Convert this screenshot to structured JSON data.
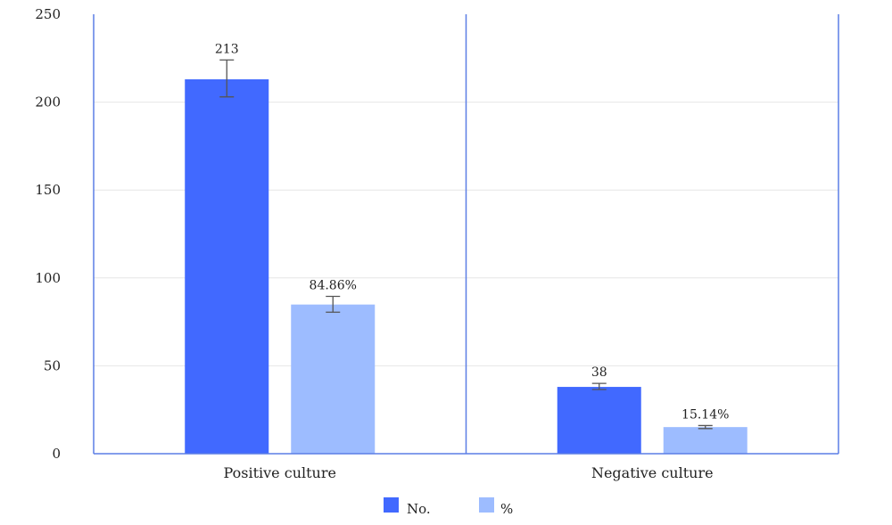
{
  "chart_data": {
    "type": "bar",
    "categories": [
      "Positive culture",
      "Negative culture"
    ],
    "series": [
      {
        "name": "No.",
        "values": [
          213,
          38
        ],
        "labels": [
          "213",
          "38"
        ],
        "error_low": [
          203,
          36.5
        ],
        "error_high": [
          224,
          40
        ],
        "color": "#4169ff"
      },
      {
        "name": "%",
        "values": [
          84.86,
          15.14
        ],
        "labels": [
          "84.86%",
          "15.14%"
        ],
        "error_low": [
          80.5,
          14.3
        ],
        "error_high": [
          89.5,
          16
        ],
        "color": "#9dbcff"
      }
    ],
    "y_ticks": [
      "0",
      "50",
      "100",
      "150",
      "200",
      "250"
    ],
    "ylim": [
      0,
      250
    ],
    "grid": true,
    "legend_position": "bottom-center",
    "axis_color": "#5b7ee5",
    "grid_color": "#e6e6e6",
    "error_bar_color": "#555555"
  }
}
